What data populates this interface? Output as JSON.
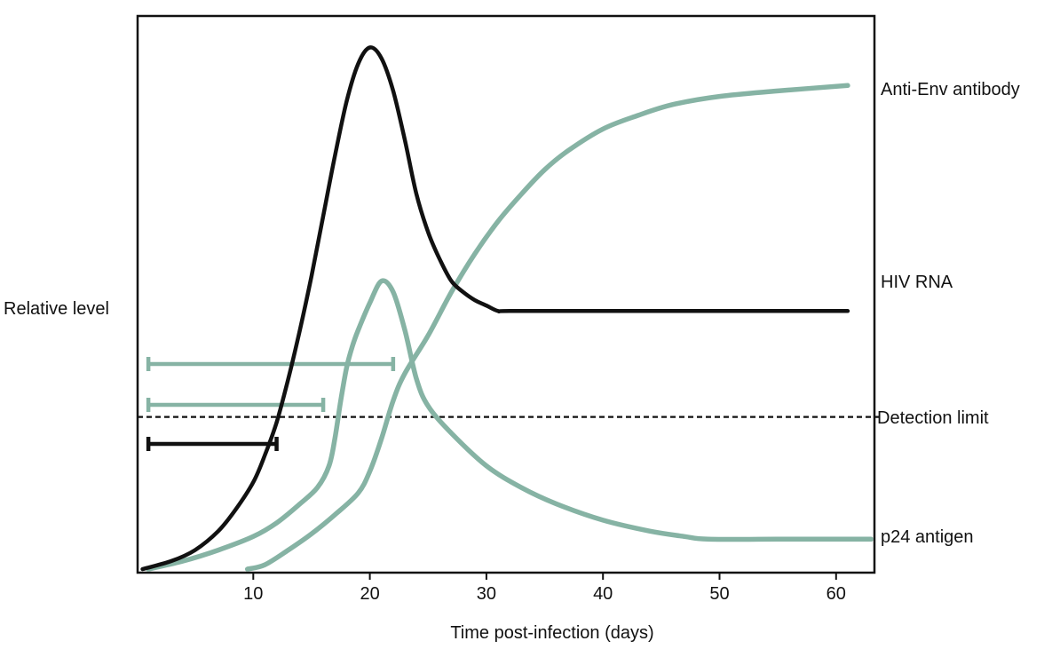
{
  "colors": {
    "black_series": "#111111",
    "green_series": "#86b3a4",
    "axis": "#111111",
    "detection_line": "#111111"
  },
  "chart_data": {
    "type": "line",
    "xlabel": "Time post-infection (days)",
    "ylabel": "Relative level",
    "xlim": [
      0,
      63
    ],
    "ylim": [
      0,
      100
    ],
    "x_ticks": [
      10,
      20,
      30,
      40,
      50,
      60
    ],
    "grid": false,
    "series": [
      {
        "name": "HIV RNA",
        "color": "#111111",
        "points": [
          [
            0.5,
            0
          ],
          [
            3,
            1.5
          ],
          [
            5,
            3.5
          ],
          [
            7,
            7
          ],
          [
            8.5,
            11
          ],
          [
            10,
            16
          ],
          [
            11,
            21
          ],
          [
            12,
            27
          ],
          [
            13,
            35
          ],
          [
            14,
            44
          ],
          [
            15,
            54
          ],
          [
            16,
            65
          ],
          [
            17,
            76
          ],
          [
            18,
            86
          ],
          [
            19,
            93
          ],
          [
            20,
            96
          ],
          [
            21,
            94
          ],
          [
            22,
            88
          ],
          [
            23,
            79
          ],
          [
            24,
            69
          ],
          [
            25,
            62
          ],
          [
            26,
            57
          ],
          [
            27,
            53
          ],
          [
            28,
            51
          ],
          [
            29,
            49.5
          ],
          [
            30,
            48.5
          ],
          [
            31,
            47.5
          ],
          [
            32,
            47.5
          ],
          [
            40,
            47.5
          ],
          [
            50,
            47.5
          ],
          [
            61,
            47.5
          ]
        ]
      },
      {
        "name": "p24 antigen",
        "color": "#86b3a4",
        "points": [
          [
            1,
            0
          ],
          [
            4,
            1.5
          ],
          [
            7,
            3.5
          ],
          [
            10,
            6
          ],
          [
            12,
            8.5
          ],
          [
            14,
            12
          ],
          [
            15.5,
            15
          ],
          [
            16.5,
            19
          ],
          [
            17,
            24
          ],
          [
            17.5,
            31
          ],
          [
            18,
            37
          ],
          [
            18.5,
            41
          ],
          [
            19,
            44
          ],
          [
            20,
            49
          ],
          [
            21,
            53
          ],
          [
            22,
            51
          ],
          [
            23,
            44
          ],
          [
            24,
            35
          ],
          [
            25,
            30
          ],
          [
            27,
            25
          ],
          [
            30,
            19
          ],
          [
            33,
            15
          ],
          [
            36,
            12
          ],
          [
            40,
            9
          ],
          [
            44,
            7
          ],
          [
            47,
            6
          ],
          [
            49,
            5.5
          ],
          [
            55,
            5.5
          ],
          [
            63,
            5.5
          ]
        ]
      },
      {
        "name": "Anti-Env antibody",
        "color": "#86b3a4",
        "points": [
          [
            9.5,
            0
          ],
          [
            11,
            0.8
          ],
          [
            13,
            3.5
          ],
          [
            15,
            6.5
          ],
          [
            17,
            10
          ],
          [
            19,
            14
          ],
          [
            20,
            18
          ],
          [
            21,
            24
          ],
          [
            22,
            31
          ],
          [
            23,
            36
          ],
          [
            25,
            43
          ],
          [
            27,
            51
          ],
          [
            29,
            58
          ],
          [
            31,
            64
          ],
          [
            33,
            69
          ],
          [
            35,
            73.5
          ],
          [
            37,
            77
          ],
          [
            40,
            81
          ],
          [
            43,
            83.5
          ],
          [
            46,
            85.5
          ],
          [
            50,
            87
          ],
          [
            55,
            88
          ],
          [
            61,
            89
          ]
        ]
      }
    ],
    "detection_limit": {
      "label": "Detection limit",
      "y": 28
    },
    "window_bars": [
      {
        "color": "#86b3a4",
        "start": 1,
        "end": 22
      },
      {
        "color": "#86b3a4",
        "start": 1,
        "end": 16
      },
      {
        "color": "#111111",
        "start": 1,
        "end": 12
      }
    ]
  }
}
